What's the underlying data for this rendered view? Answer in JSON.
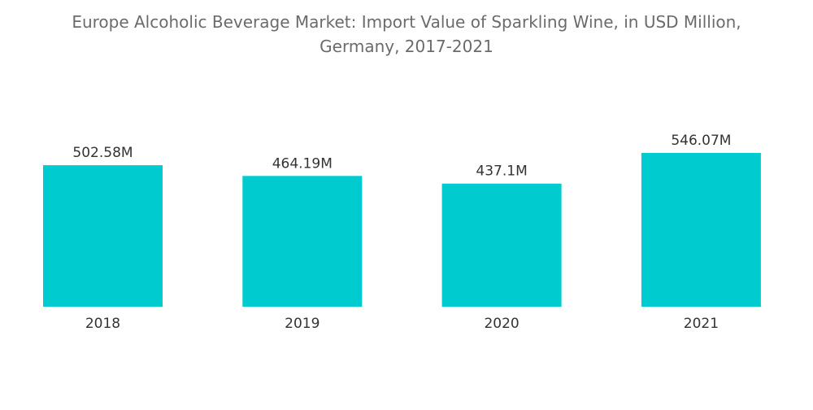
{
  "chart_data": {
    "type": "bar",
    "title_line1": "Europe Alcoholic Beverage Market: Import Value of Sparkling Wine, in USD Million,",
    "title_line2": "Germany, 2017-2021",
    "categories": [
      "2018",
      "2019",
      "2020",
      "2021"
    ],
    "values": [
      502.58,
      464.19,
      437.1,
      546.07
    ],
    "value_labels": [
      "502.58M",
      "464.19M",
      "437.1M",
      "546.07M"
    ],
    "xlabel": "",
    "ylabel": "",
    "ylim": [
      0,
      546.07
    ],
    "grid": false,
    "legend": "none",
    "bar_color": "#00cccf"
  }
}
